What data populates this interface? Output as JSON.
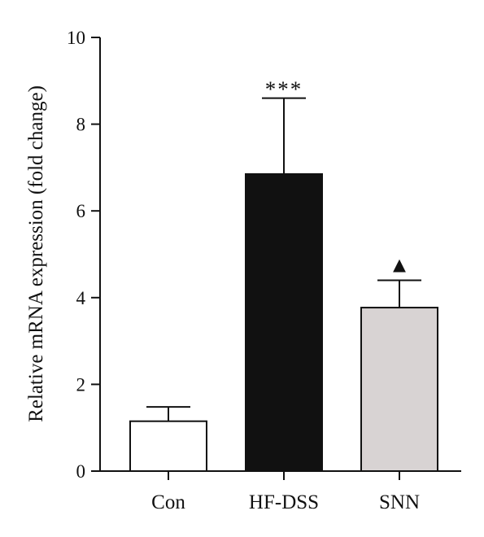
{
  "chart_data": {
    "type": "bar",
    "categories": [
      "Con",
      "HF-DSS",
      "SNN"
    ],
    "values": [
      1.15,
      6.85,
      3.77
    ],
    "errors": [
      0.33,
      1.75,
      0.63
    ],
    "bar_colors": [
      "#ffffff",
      "#111111",
      "#d8d3d3"
    ],
    "significance": [
      "",
      "***",
      "▲"
    ],
    "ylabel": "Relative mRNA expression (fold change)",
    "ylim": [
      0,
      10
    ],
    "yticks": [
      0,
      2,
      4,
      6,
      8,
      10
    ],
    "ytick_labels": [
      "0",
      "2",
      "4",
      "6",
      "8",
      "10"
    ],
    "grid": false,
    "legend": "none"
  }
}
